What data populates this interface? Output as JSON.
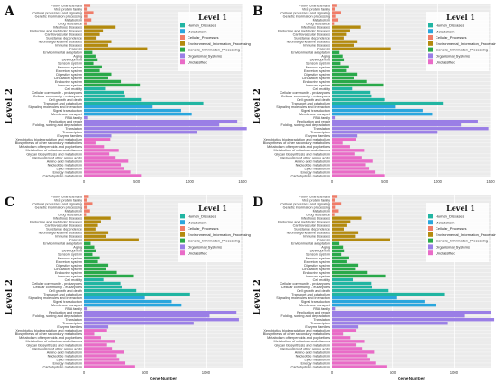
{
  "chart_data": {
    "categories": [
      "Poorly characterized",
      "Viral protein family",
      "Cellular processes and signaling",
      "Genetic information processing",
      "Metabolism",
      "Drug resistance",
      "Infectious diseases",
      "Endocrine and metabolic diseases",
      "Cardiovascular diseases",
      "Substance dependence",
      "Neurodegenerative diseases",
      "Immune diseases",
      "Cancers",
      "Environmental adaptation",
      "Aging",
      "Development",
      "Sensory system",
      "Nervous system",
      "Excretory system",
      "Digestive system",
      "Circulatory system",
      "Endocrine system",
      "Immune system",
      "Cell motility",
      "Cellular community - prokaryotes",
      "Cellular community - eukaryotes",
      "Cell growth and death",
      "Transport and catabolism",
      "Signaling molecules and interaction",
      "Signal transduction",
      "Membrane transport",
      "RNA family",
      "Replication and repair",
      "Folding, sorting and degradation",
      "Translation",
      "Transcription",
      "Enzyme families",
      "Xenobiotics biodegradation and metabolism",
      "Biosynthesis of other secondary metabolites",
      "Metabolism of terpenoids and polyketides",
      "Metabolism of cofactors and vitamins",
      "Glycan biosynthesis and metabolism",
      "Metabolism of other amino acids",
      "Amino acid metabolism",
      "Nucleotide metabolism",
      "Lipid metabolism",
      "Energy metabolism",
      "Carbohydrate metabolism"
    ],
    "groups": [
      0,
      0,
      0,
      0,
      0,
      0,
      1,
      1,
      1,
      1,
      1,
      1,
      1,
      2,
      2,
      2,
      2,
      2,
      2,
      2,
      2,
      2,
      2,
      3,
      3,
      3,
      3,
      3,
      4,
      4,
      4,
      5,
      5,
      5,
      5,
      5,
      5,
      6,
      6,
      6,
      6,
      6,
      6,
      6,
      6,
      6,
      6,
      6
    ],
    "legend_title": "Level 1",
    "legend_labels": [
      "Cellular_Processes",
      "Environmental_Information_Processing",
      "Genetic_Information_Processing",
      "Human_Diseases",
      "Metabolism",
      "Organismal_Systems",
      "Unclassified"
    ],
    "legend_order": [
      3,
      4,
      0,
      1,
      2,
      5,
      6
    ],
    "ylabel": "Level 2",
    "xlabel": "Gene Number",
    "panels": [
      {
        "letter": "A",
        "xticks": [
          "0",
          "500",
          "1000",
          "1500"
        ],
        "xmax": 1500,
        "show_xlabel": false,
        "values": [
          60,
          35,
          90,
          40,
          70,
          25,
          300,
          180,
          150,
          120,
          260,
          230,
          600,
          80,
          110,
          130,
          90,
          170,
          150,
          260,
          230,
          350,
          530,
          200,
          380,
          390,
          540,
          1130,
          650,
          920,
          1020,
          40,
          1450,
          1280,
          1540,
          1070,
          260,
          250,
          110,
          190,
          330,
          240,
          300,
          420,
          350,
          380,
          440,
          540
        ]
      },
      {
        "letter": "B",
        "xticks": [
          "0",
          "500",
          "1000",
          "1500"
        ],
        "xmax": 1500,
        "show_xlabel": false,
        "values": [
          50,
          30,
          85,
          40,
          60,
          20,
          270,
          170,
          140,
          110,
          240,
          210,
          560,
          70,
          100,
          120,
          80,
          160,
          140,
          240,
          210,
          330,
          490,
          190,
          360,
          370,
          500,
          1050,
          600,
          860,
          950,
          35,
          1380,
          1220,
          1480,
          1000,
          240,
          230,
          100,
          170,
          310,
          220,
          280,
          390,
          320,
          350,
          410,
          500
        ]
      },
      {
        "letter": "C",
        "xticks": [
          "0",
          "500",
          "1000"
        ],
        "xmax": 1300,
        "show_xlabel": true,
        "values": [
          40,
          25,
          70,
          30,
          50,
          18,
          220,
          140,
          115,
          95,
          200,
          180,
          450,
          55,
          85,
          100,
          70,
          130,
          115,
          200,
          180,
          270,
          410,
          160,
          300,
          310,
          430,
          870,
          500,
          720,
          800,
          30,
          1250,
          1030,
          1270,
          900,
          200,
          190,
          85,
          140,
          255,
          190,
          230,
          330,
          270,
          290,
          340,
          420
        ]
      },
      {
        "letter": "D",
        "xticks": [
          "0",
          "500",
          "1000"
        ],
        "xmax": 1300,
        "show_xlabel": true,
        "values": [
          45,
          28,
          75,
          32,
          55,
          20,
          240,
          150,
          125,
          100,
          215,
          195,
          480,
          60,
          90,
          105,
          75,
          140,
          125,
          215,
          195,
          290,
          440,
          170,
          320,
          330,
          460,
          920,
          530,
          760,
          850,
          32,
          1300,
          1090,
          1330,
          950,
          215,
          200,
          90,
          150,
          270,
          200,
          245,
          350,
          290,
          310,
          360,
          450
        ]
      }
    ],
    "colors": [
      "#f07c68",
      "#b38a0e",
      "#2aa94a",
      "#21b5a2",
      "#2aa6dd",
      "#9a7ee6",
      "#e96bc7"
    ]
  }
}
